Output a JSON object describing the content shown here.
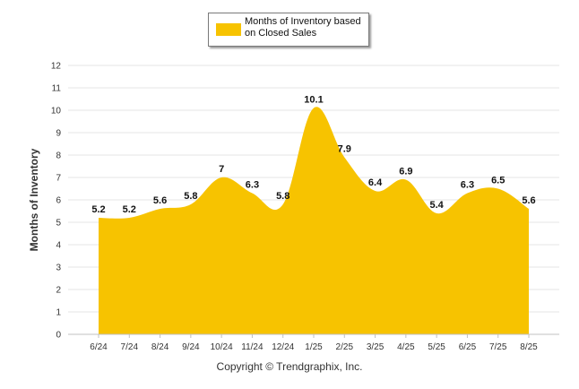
{
  "chart_data": {
    "type": "area",
    "categories": [
      "6/24",
      "7/24",
      "8/24",
      "9/24",
      "10/24",
      "11/24",
      "12/24",
      "1/25",
      "2/25",
      "3/25",
      "4/25",
      "5/25",
      "6/25",
      "7/25",
      "8/25"
    ],
    "series": [
      {
        "name": "Months of Inventory based on Closed Sales",
        "values": [
          5.2,
          5.2,
          5.6,
          5.8,
          7,
          6.3,
          5.8,
          10.1,
          7.9,
          6.4,
          6.9,
          5.4,
          6.3,
          6.5,
          5.6
        ]
      }
    ],
    "data_labels": [
      "5.2",
      "5.2",
      "5.6",
      "5.8",
      "7",
      "6.3",
      "5.8",
      "10.1",
      "7.9",
      "6.4",
      "6.9",
      "5.4",
      "6.3",
      "6.5",
      "5.6"
    ],
    "yticks": [
      0,
      1,
      2,
      3,
      4,
      5,
      6,
      7,
      8,
      9,
      10,
      11,
      12
    ],
    "ylim": [
      0,
      12
    ],
    "xlabel": "",
    "ylabel": "Months of Inventory",
    "grid": true,
    "legend_position": "top-center",
    "color": "#F7C300"
  },
  "footer": {
    "copyright": "Copyright © Trendgraphix, Inc."
  }
}
